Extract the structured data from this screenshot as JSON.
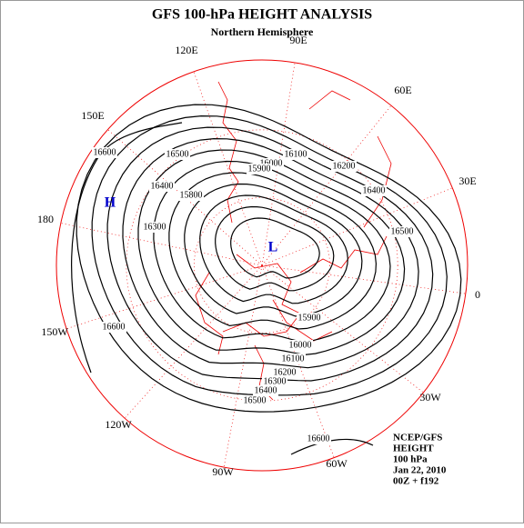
{
  "header": {
    "title": "GFS 100-hPa HEIGHT ANALYSIS",
    "subtitle": "Northern Hemisphere"
  },
  "longitude_labels": [
    "90E",
    "60E",
    "30E",
    "0",
    "30W",
    "60W",
    "90W",
    "120W",
    "150W",
    "180",
    "150E",
    "120E"
  ],
  "centers": {
    "high": "H",
    "low": "L"
  },
  "contour_labels": [
    "16600",
    "16500",
    "16400",
    "16300",
    "15800",
    "16100",
    "16000",
    "15900",
    "16200",
    "16400",
    "16500",
    "16600",
    "15900",
    "16000",
    "16100",
    "16200",
    "16300",
    "16400",
    "16500",
    "16600"
  ],
  "info": [
    "NCEP/GFS",
    "HEIGHT",
    "100 hPa",
    "Jan 22, 2010",
    "00Z + f192"
  ]
}
